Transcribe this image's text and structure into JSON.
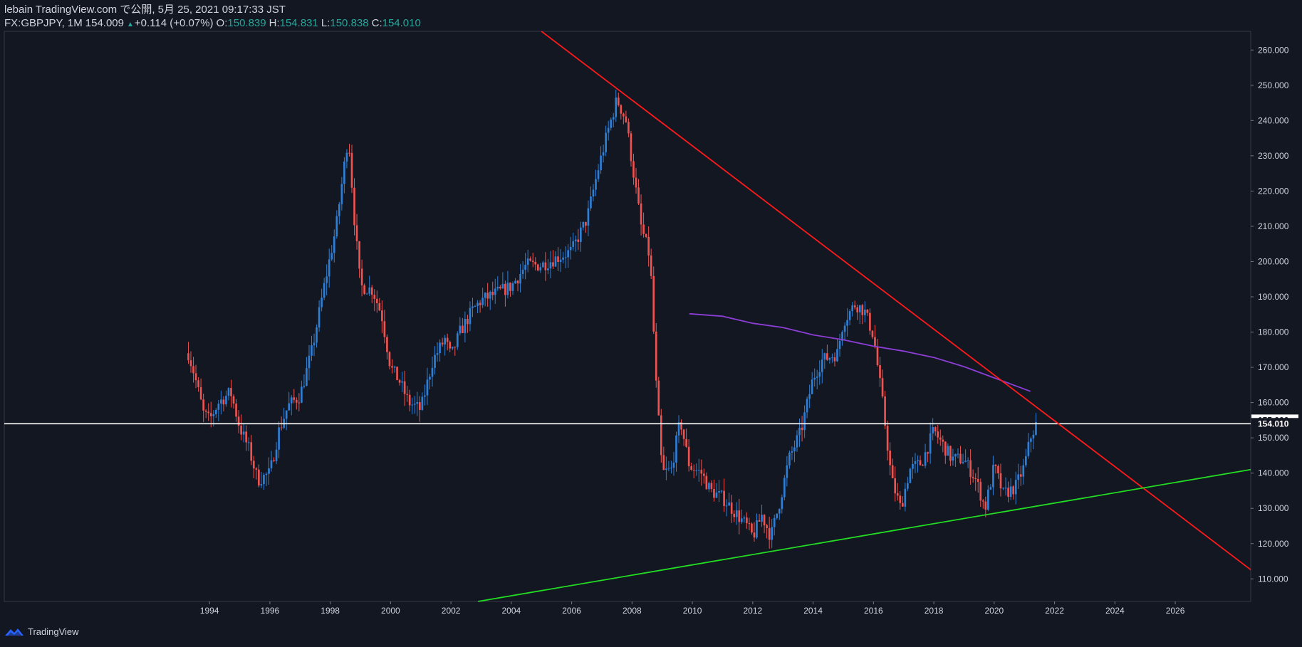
{
  "header": {
    "publish_line": "lebain TradingView.com で公開, 5月 25, 2021 09:17:33 JST",
    "symbol": "FX:GBPJPY, 1M",
    "last": "154.009",
    "up_arrow": "▲",
    "change": "+0.114 (+0.07%)",
    "o_label": "O:",
    "o_value": "150.839",
    "h_label": "H:",
    "h_value": "154.831",
    "l_label": "L:",
    "l_value": "150.838",
    "c_label": "C:",
    "c_value": "154.010"
  },
  "footer": {
    "brand": "TradingView"
  },
  "colors": {
    "background": "#131722",
    "up": "#2e7fd6",
    "down": "#ef5350",
    "resistance": "#ff1a1a",
    "support": "#22dd22",
    "ma": "#8c3ed6",
    "horizontal": "#ffffff"
  },
  "chart_data": {
    "type": "candlestick",
    "symbol": "FX:GBPJPY",
    "interval": "1M",
    "x_ticks": [
      "1994",
      "1996",
      "1998",
      "2000",
      "2002",
      "2004",
      "2006",
      "2008",
      "2010",
      "2012",
      "2014",
      "2016",
      "2018",
      "2020",
      "2022",
      "2024",
      "2026"
    ],
    "y_ticks": [
      "110.000",
      "120.000",
      "130.000",
      "140.000",
      "150.000",
      "160.000",
      "170.000",
      "180.000",
      "190.000",
      "200.000",
      "210.000",
      "220.000",
      "230.000",
      "240.000",
      "250.000",
      "260.000"
    ],
    "xlim": [
      1987.2,
      2028.5
    ],
    "ylim": [
      103.6,
      265.3
    ],
    "price_labels": {
      "horizontal": "155.000",
      "last": "154.010"
    },
    "horizontal_line": 154.0,
    "resistance_line": {
      "from": [
        2005.0,
        265.3
      ],
      "to": [
        2028.5,
        112.6
      ]
    },
    "support_line": {
      "from": [
        2002.9,
        103.6
      ],
      "to": [
        2028.5,
        141.0
      ]
    },
    "moving_average": [
      [
        2009.9,
        185.2
      ],
      [
        2011,
        184.5
      ],
      [
        2012,
        182.5
      ],
      [
        2013,
        181.3
      ],
      [
        2014,
        179.2
      ],
      [
        2015,
        177.8
      ],
      [
        2016,
        176.0
      ],
      [
        2017,
        174.6
      ],
      [
        2018,
        172.8
      ],
      [
        2019,
        170.2
      ],
      [
        2020,
        167.0
      ],
      [
        2021.2,
        163.2
      ]
    ],
    "price_path": [
      [
        1993.3,
        174
      ],
      [
        1993.5,
        168
      ],
      [
        1993.8,
        157
      ],
      [
        1994.0,
        155
      ],
      [
        1994.3,
        160
      ],
      [
        1994.7,
        163
      ],
      [
        1995.0,
        153
      ],
      [
        1995.3,
        147
      ],
      [
        1995.6,
        138
      ],
      [
        1996.0,
        140
      ],
      [
        1996.3,
        152
      ],
      [
        1996.6,
        159
      ],
      [
        1997.0,
        162
      ],
      [
        1997.4,
        175
      ],
      [
        1997.8,
        193
      ],
      [
        1998.2,
        210
      ],
      [
        1998.6,
        236
      ],
      [
        1998.8,
        212
      ],
      [
        1999.0,
        193
      ],
      [
        1999.4,
        192
      ],
      [
        1999.7,
        185
      ],
      [
        2000.0,
        170
      ],
      [
        2000.3,
        166
      ],
      [
        2000.6,
        160
      ],
      [
        2001.0,
        158
      ],
      [
        2001.4,
        172
      ],
      [
        2001.8,
        178
      ],
      [
        2002.0,
        173
      ],
      [
        2002.3,
        180
      ],
      [
        2002.7,
        186
      ],
      [
        2003.0,
        189
      ],
      [
        2003.5,
        191
      ],
      [
        2004.0,
        193
      ],
      [
        2004.5,
        199
      ],
      [
        2005.0,
        199
      ],
      [
        2005.5,
        201
      ],
      [
        2006.0,
        203
      ],
      [
        2006.5,
        212
      ],
      [
        2006.9,
        227
      ],
      [
        2007.2,
        237
      ],
      [
        2007.5,
        246
      ],
      [
        2007.8,
        240
      ],
      [
        2008.0,
        228
      ],
      [
        2008.3,
        210
      ],
      [
        2008.6,
        201
      ],
      [
        2008.8,
        165
      ],
      [
        2009.0,
        140
      ],
      [
        2009.3,
        141
      ],
      [
        2009.6,
        155
      ],
      [
        2009.9,
        142
      ],
      [
        2010.3,
        140
      ],
      [
        2010.6,
        135
      ],
      [
        2011.0,
        133
      ],
      [
        2011.4,
        129
      ],
      [
        2011.8,
        125
      ],
      [
        2012.0,
        122
      ],
      [
        2012.3,
        128
      ],
      [
        2012.6,
        122
      ],
      [
        2012.9,
        132
      ],
      [
        2013.2,
        144
      ],
      [
        2013.6,
        152
      ],
      [
        2014.0,
        167
      ],
      [
        2014.3,
        172
      ],
      [
        2014.8,
        174
      ],
      [
        2015.0,
        183
      ],
      [
        2015.4,
        188
      ],
      [
        2015.7,
        186
      ],
      [
        2016.0,
        179
      ],
      [
        2016.3,
        160
      ],
      [
        2016.6,
        138
      ],
      [
        2016.9,
        130
      ],
      [
        2017.2,
        141
      ],
      [
        2017.6,
        143
      ],
      [
        2018.0,
        152
      ],
      [
        2018.3,
        148
      ],
      [
        2018.6,
        144
      ],
      [
        2019.0,
        144
      ],
      [
        2019.4,
        138
      ],
      [
        2019.7,
        130
      ],
      [
        2020.0,
        142
      ],
      [
        2020.3,
        134
      ],
      [
        2020.7,
        136
      ],
      [
        2021.0,
        142
      ],
      [
        2021.2,
        150
      ],
      [
        2021.4,
        154
      ]
    ]
  }
}
